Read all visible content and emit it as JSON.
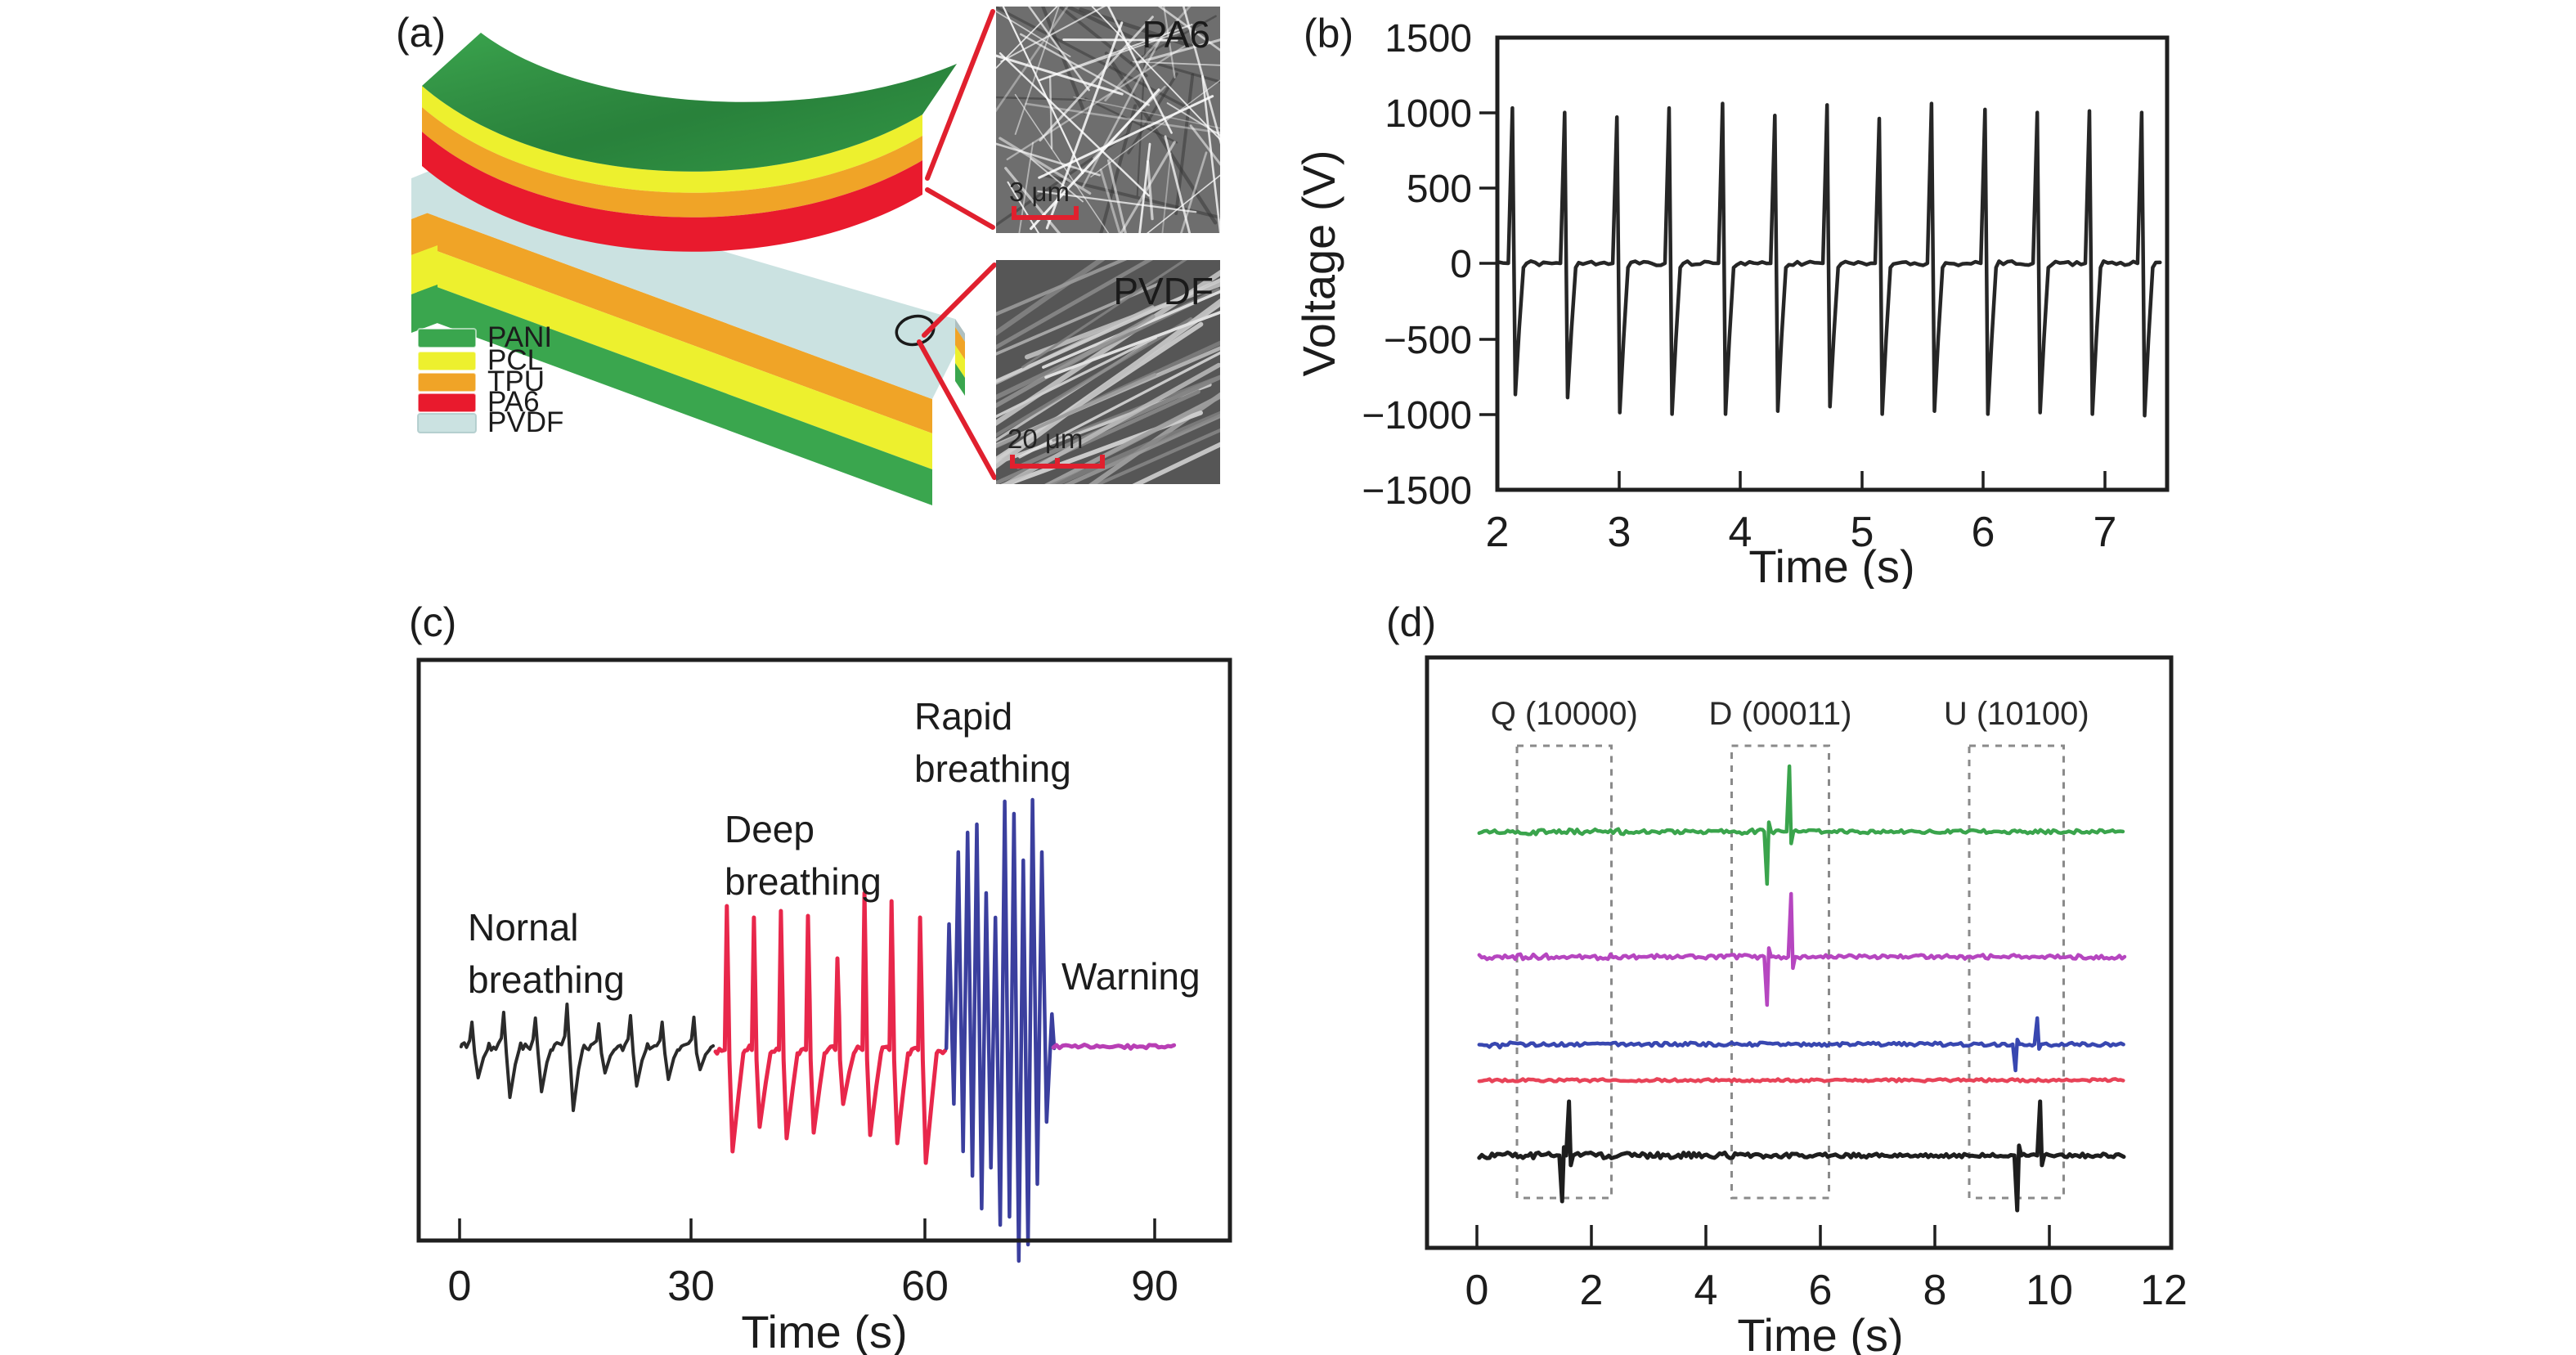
{
  "panels": {
    "a": {
      "label": "(a)"
    },
    "b": {
      "label": "(b)"
    },
    "c": {
      "label": "(c)"
    },
    "d": {
      "label": "(d)"
    }
  },
  "panel_a": {
    "legend": {
      "items": [
        {
          "label": "PANI",
          "color": "#3aa64e"
        },
        {
          "label": "PCL",
          "color": "#edf02e"
        },
        {
          "label": "TPU",
          "color": "#f0a427"
        },
        {
          "label": "PA6",
          "color": "#e91a2d"
        },
        {
          "label": "PVDF",
          "color": "#cbe2e1"
        }
      ]
    },
    "upper_stack_layers": [
      "PANI",
      "PCL",
      "TPU",
      "PA6"
    ],
    "lower_stack_layers": [
      "PVDF",
      "TPU",
      "PCL",
      "PANI"
    ],
    "sem_images": [
      {
        "material": "PA6",
        "scale_bar": "3 μm"
      },
      {
        "material": "PVDF",
        "scale_bar": "20 μm"
      }
    ]
  },
  "chart_data": [
    {
      "panel": "b",
      "type": "line",
      "title": "",
      "xlabel": "Time (s)",
      "ylabel": "Voltage (V)",
      "xlim": [
        2,
        7.5
      ],
      "ylim": [
        -1500,
        1500
      ],
      "grid": false,
      "xticks": [
        2,
        3,
        4,
        5,
        6,
        7
      ],
      "xticklabels": [
        "2",
        "3",
        "4",
        "5",
        "6",
        "7"
      ],
      "yticks": [
        1500,
        1000,
        500,
        0,
        -500,
        -1000,
        -1500
      ],
      "yticklabels": [
        "1500",
        "1000",
        "500",
        "0",
        "−500",
        "−1000",
        "−1500"
      ],
      "series": [
        {
          "name": "output-voltage",
          "color": "#262626",
          "baseline": 0,
          "spikes": [
            {
              "t": 2.13,
              "peak": 1030,
              "trough": -870
            },
            {
              "t": 2.56,
              "peak": 1000,
              "trough": -890
            },
            {
              "t": 2.99,
              "peak": 970,
              "trough": -990
            },
            {
              "t": 3.42,
              "peak": 1030,
              "trough": -1000
            },
            {
              "t": 3.86,
              "peak": 1060,
              "trough": -1000
            },
            {
              "t": 4.29,
              "peak": 980,
              "trough": -980
            },
            {
              "t": 4.72,
              "peak": 1050,
              "trough": -950
            },
            {
              "t": 5.15,
              "peak": 960,
              "trough": -1000
            },
            {
              "t": 5.58,
              "peak": 1060,
              "trough": -980
            },
            {
              "t": 6.02,
              "peak": 1020,
              "trough": -1000
            },
            {
              "t": 6.45,
              "peak": 1000,
              "trough": -990
            },
            {
              "t": 6.88,
              "peak": 1010,
              "trough": -1000
            },
            {
              "t": 7.31,
              "peak": 1000,
              "trough": -1010
            }
          ]
        }
      ]
    },
    {
      "panel": "c",
      "type": "line",
      "xlabel": "Time (s)",
      "xlim": [
        0,
        99
      ],
      "xticks": [
        0,
        30,
        60,
        90
      ],
      "xticklabels": [
        "0",
        "30",
        "60",
        "90"
      ],
      "grid": false,
      "segments": [
        {
          "name": "normal-breathing",
          "label": "Nornal breathing",
          "label_lines": [
            "Nornal",
            "breathing"
          ],
          "color": "#2b2b2b",
          "t_range": [
            0,
            33
          ],
          "breath_t": [
            1.6,
            5.7,
            9.8,
            13.9,
            18.0,
            22.1,
            26.2,
            30.3
          ],
          "amp_up": [
            30,
            42,
            35,
            52,
            28,
            38,
            30,
            36
          ],
          "amp_down": [
            38,
            62,
            55,
            78,
            32,
            48,
            40,
            28
          ]
        },
        {
          "name": "deep-breathing",
          "label": "Deep breathing",
          "label_lines": [
            "Deep",
            "breathing"
          ],
          "color": "#e8274b",
          "t_range": [
            33,
            63
          ],
          "spike_t": [
            34.6,
            38.1,
            41.6,
            45.1,
            48.9,
            52.4,
            55.9,
            59.6
          ],
          "amp_up": [
            172,
            158,
            166,
            160,
            108,
            188,
            178,
            158
          ],
          "amp_down": [
            128,
            98,
            112,
            105,
            70,
            108,
            118,
            142
          ]
        },
        {
          "name": "rapid-breathing",
          "label": "Rapid breathing",
          "label_lines": [
            "Rapid",
            "breathing"
          ],
          "color": "#3b3f9e",
          "t_range": [
            63,
            77
          ],
          "cycle_t": [
            63.3,
            64.5,
            65.7,
            66.9,
            68.1,
            69.3,
            70.5,
            71.7,
            72.9,
            74.1,
            75.3
          ],
          "amp_up": [
            150,
            238,
            262,
            272,
            188,
            158,
            300,
            285,
            228,
            302,
            238
          ],
          "amp_down": [
            70,
            128,
            158,
            198,
            148,
            218,
            208,
            262,
            242,
            168,
            92
          ]
        },
        {
          "name": "warning",
          "label": "Warning",
          "label_lines": [
            "Warning"
          ],
          "color": "#b83fb5",
          "t_range": [
            77,
            92.6
          ],
          "flat": true
        }
      ]
    },
    {
      "panel": "d",
      "type": "line",
      "xlabel": "Time (s)",
      "xlim": [
        0,
        12
      ],
      "xticks": [
        0,
        2,
        4,
        6,
        8,
        10,
        12
      ],
      "xticklabels": [
        "0",
        "2",
        "4",
        "6",
        "8",
        "10",
        "12"
      ],
      "grid": false,
      "code_boxes": [
        {
          "label": "Q (10000)",
          "t_range": [
            0.7,
            2.35
          ]
        },
        {
          "label": "D (00011)",
          "t_range": [
            4.45,
            6.15
          ]
        },
        {
          "label": "U (10100)",
          "t_range": [
            8.6,
            10.25
          ]
        }
      ],
      "traces": [
        {
          "name": "trace-green",
          "color": "#3aa44c",
          "offset_y": 1017,
          "noise": 2.2,
          "noise_zones": [
            [
              0.8,
              2.6,
              3.4
            ],
            [
              4.2,
              5.0,
              3.0
            ]
          ],
          "spikes": [
            {
              "t": 5.08,
              "dv": -64
            },
            {
              "t": 5.47,
              "dv": 80
            }
          ]
        },
        {
          "name": "trace-magenta",
          "color": "#b646c0",
          "offset_y": 1170,
          "noise": 2.6,
          "noise_zones": [
            [
              0,
              2.6,
              3.2
            ]
          ],
          "spikes": [
            {
              "t": 5.08,
              "dv": -59
            },
            {
              "t": 5.5,
              "dv": 77
            }
          ]
        },
        {
          "name": "trace-blue",
          "color": "#3847b0",
          "offset_y": 1277,
          "noise": 2.2,
          "noise_zones": [
            [
              0.05,
              0.6,
              6
            ]
          ],
          "spikes": [
            {
              "t": 9.42,
              "dv": -32
            },
            {
              "t": 9.8,
              "dv": 32
            }
          ]
        },
        {
          "name": "trace-red",
          "color": "#e84358",
          "offset_y": 1321,
          "noise": 1.6,
          "noise_zones": [],
          "spikes": []
        },
        {
          "name": "trace-black",
          "color": "#1e1e1e",
          "offset_y": 1413,
          "noise": 2.4,
          "noise_zones": [
            [
              0,
              5.05,
              3.6
            ]
          ],
          "spikes": [
            {
              "t": 1.5,
              "dv": -56
            },
            {
              "t": 1.62,
              "dv": 66
            },
            {
              "t": 9.45,
              "dv": -67
            },
            {
              "t": 9.85,
              "dv": 66
            }
          ]
        }
      ]
    }
  ]
}
